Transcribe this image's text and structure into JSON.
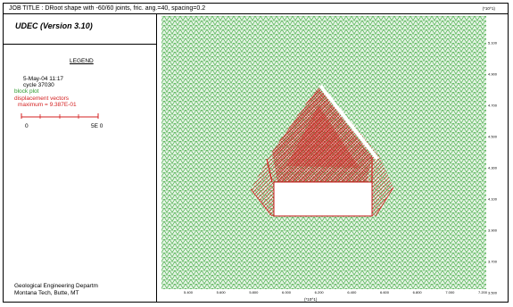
{
  "title_line": "JOB TITLE :  DRoot shape with -60/60 joints, fric. ang.=40, spacing=0.2",
  "program_title": "UDEC (Version 3.10)",
  "legend": {
    "heading": "LEGEND",
    "date": "5-May-04  11:17",
    "cycle": "cycle    37030",
    "block_plot": "block plot",
    "displacement_vectors": "displacement vectors",
    "maximum": "maximum =     9.387E-01",
    "scale_min": "0",
    "scale_max": "5E  0"
  },
  "footer": {
    "line1": "Geological Engineering Departm",
    "line2": "Montana Tech, Butte, MT"
  },
  "axes": {
    "unit_y": "(*10^1)",
    "unit_x": "(*10^1)",
    "x_ticks": [
      "5.400",
      "5.600",
      "5.800",
      "6.000",
      "6.200",
      "6.400",
      "6.600",
      "6.800",
      "7.000",
      "7.200"
    ],
    "y_ticks": [
      "5.100",
      "4.900",
      "4.700",
      "4.500",
      "4.300",
      "4.100",
      "3.900",
      "3.700",
      "3.500"
    ]
  },
  "colors": {
    "block": "#2e9a2e",
    "vectors": "#d42020",
    "background": "#ffffff"
  }
}
